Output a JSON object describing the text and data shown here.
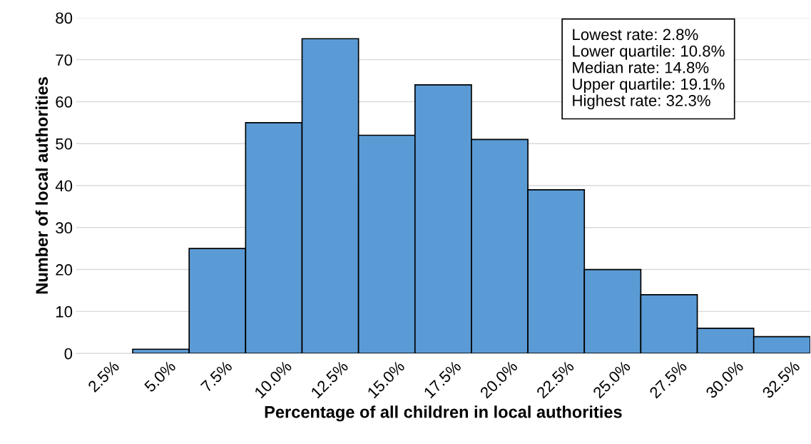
{
  "chart_data": {
    "type": "bar",
    "xlabel": "Percentage of all children in local authorities",
    "ylabel": "Number of local authorities",
    "categories": [
      "2.5%",
      "5.0%",
      "7.5%",
      "10.0%",
      "12.5%",
      "15.0%",
      "17.5%",
      "20.0%",
      "22.5%",
      "25.0%",
      "27.5%",
      "30.0%",
      "32.5%"
    ],
    "values": [
      null,
      1,
      25,
      55,
      75,
      52,
      64,
      51,
      39,
      20,
      14,
      6,
      4
    ],
    "color": "#5b9bd5",
    "ylim": [
      0,
      80
    ],
    "yticks": [
      0,
      10,
      20,
      30,
      40,
      50,
      60,
      70,
      80
    ],
    "grid": "y",
    "legend": false,
    "annotations": [
      "Lowest rate: 2.8%",
      "Lower quartile: 10.8%",
      "Median rate: 14.8%",
      "Upper quartile: 19.1%",
      "Highest rate: 32.3%"
    ]
  }
}
